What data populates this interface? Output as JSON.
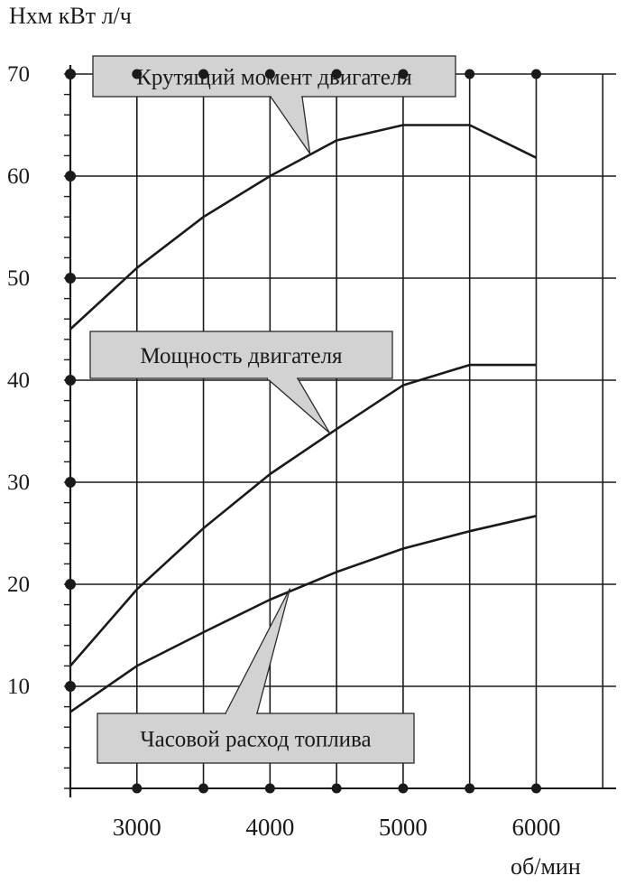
{
  "chart_data": {
    "type": "line",
    "y_axis_label": "Нхм кВт л/ч",
    "x_axis_label": "об/мин",
    "x_range": [
      2500,
      6600
    ],
    "y_range": [
      0,
      70
    ],
    "y_ticks": [
      10,
      20,
      30,
      40,
      50,
      60,
      70
    ],
    "x_ticks": [
      3000,
      4000,
      5000,
      6000
    ],
    "y_tick_labels": [
      "10",
      "20",
      "30",
      "40",
      "50",
      "60",
      "70"
    ],
    "x_tick_labels": [
      "3000",
      "4000",
      "5000",
      "6000"
    ],
    "grid": true,
    "series": [
      {
        "name": "Крутящий момент двигателя",
        "x": [
          2500,
          3000,
          3500,
          4000,
          4500,
          5000,
          5500,
          6000
        ],
        "y": [
          45,
          51,
          56,
          60,
          63.5,
          65,
          65,
          61.8
        ]
      },
      {
        "name": "Мощность двигателя",
        "x": [
          2500,
          3000,
          3500,
          4000,
          4500,
          5000,
          5500,
          6000
        ],
        "y": [
          12,
          19.5,
          25.5,
          30.8,
          35.2,
          39.5,
          41.5,
          41.5
        ]
      },
      {
        "name": "Часовой расход топлива",
        "x": [
          2500,
          3000,
          3500,
          4000,
          4500,
          5000,
          5500,
          6000
        ],
        "y": [
          7.5,
          12,
          15.3,
          18.5,
          21.2,
          23.5,
          25.2,
          26.7
        ]
      }
    ],
    "annotations": [
      "Крутящий момент двигателя",
      "Мощность двигателя",
      "Часовой расход топлива"
    ]
  }
}
